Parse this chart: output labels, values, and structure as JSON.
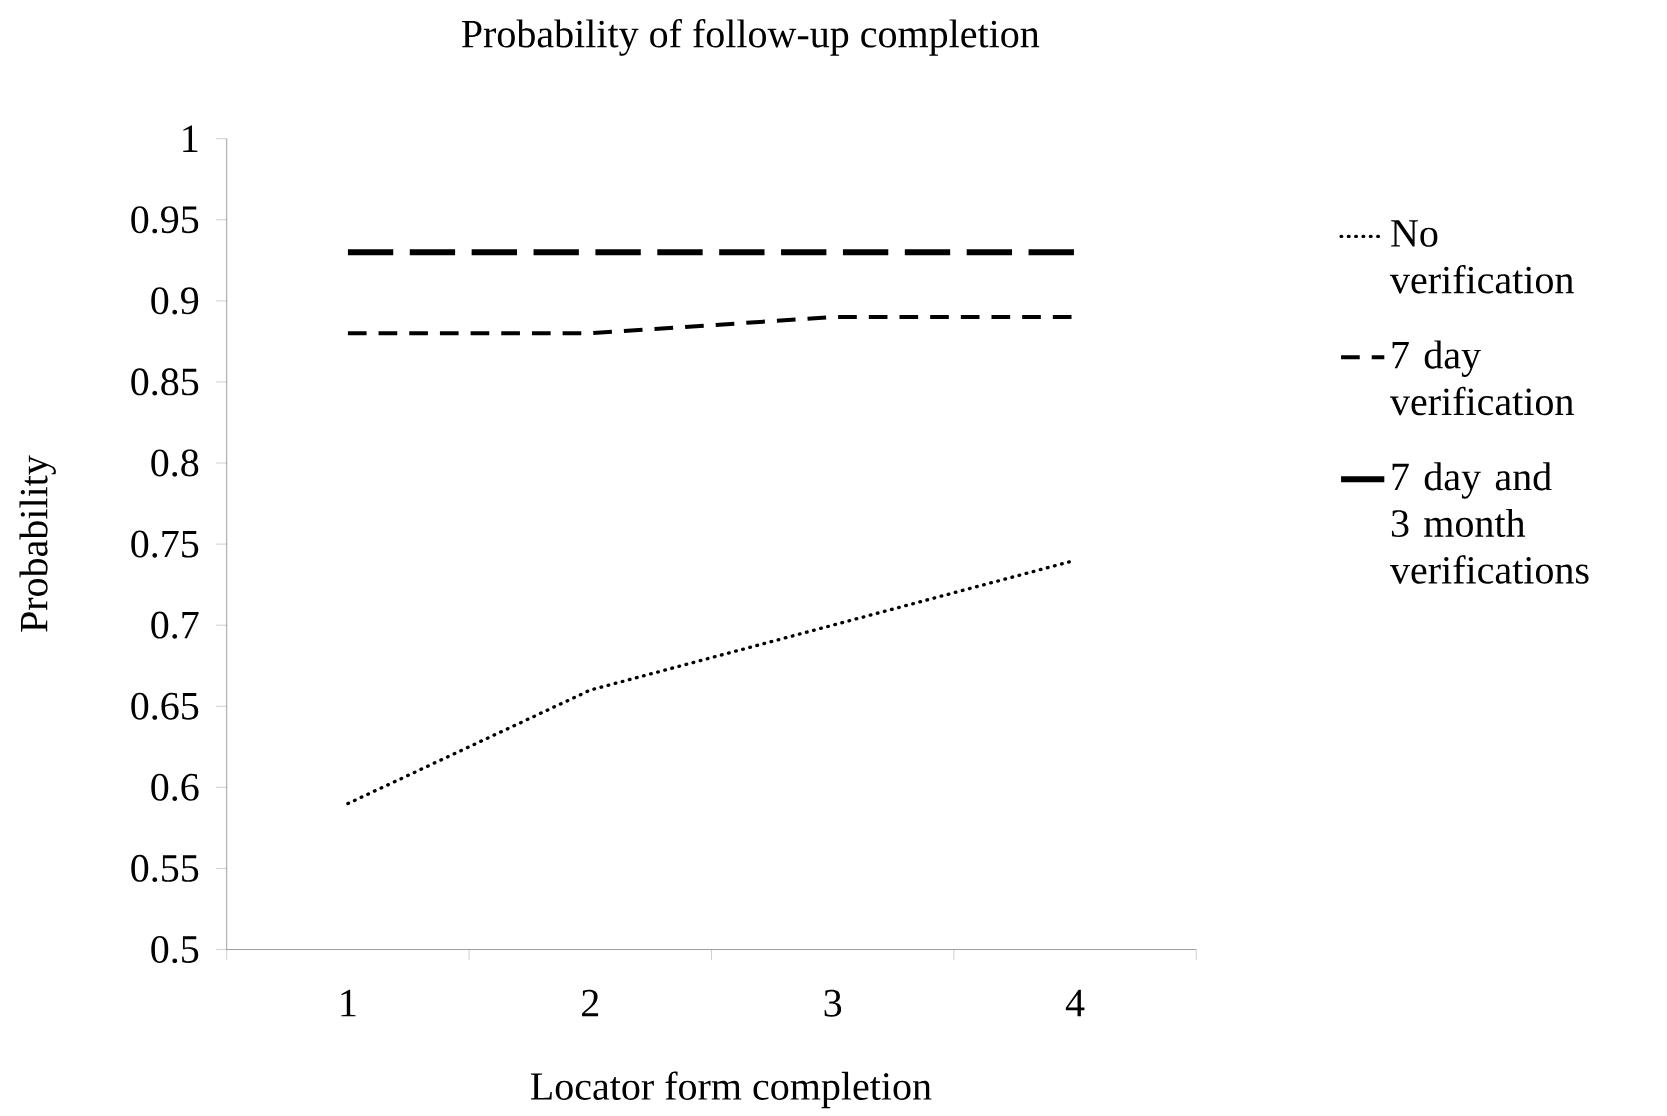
{
  "chart_data": {
    "type": "line",
    "title": "Probability of follow-up completion",
    "xlabel": "Locator form completion",
    "ylabel": "Probability",
    "categories": [
      "1",
      "2",
      "3",
      "4"
    ],
    "series": [
      {
        "name": "No verification",
        "color": "#000000",
        "line_style": "dotted",
        "values": [
          0.59,
          0.66,
          0.7,
          0.74
        ]
      },
      {
        "name": "7 day verification",
        "color": "#000000",
        "line_style": "dashed",
        "values": [
          0.88,
          0.88,
          0.89,
          0.89
        ]
      },
      {
        "name": "7 day and 3 month verifications",
        "color": "#000000",
        "line_style": "dashed",
        "values": [
          0.93,
          0.93,
          0.93,
          0.93
        ]
      }
    ],
    "ylim": [
      0.5,
      1
    ],
    "yticks": [
      0.5,
      0.55,
      0.6,
      0.65,
      0.7,
      0.75,
      0.8,
      0.85,
      0.9,
      0.95,
      1
    ],
    "grid": false,
    "legend": "right"
  }
}
